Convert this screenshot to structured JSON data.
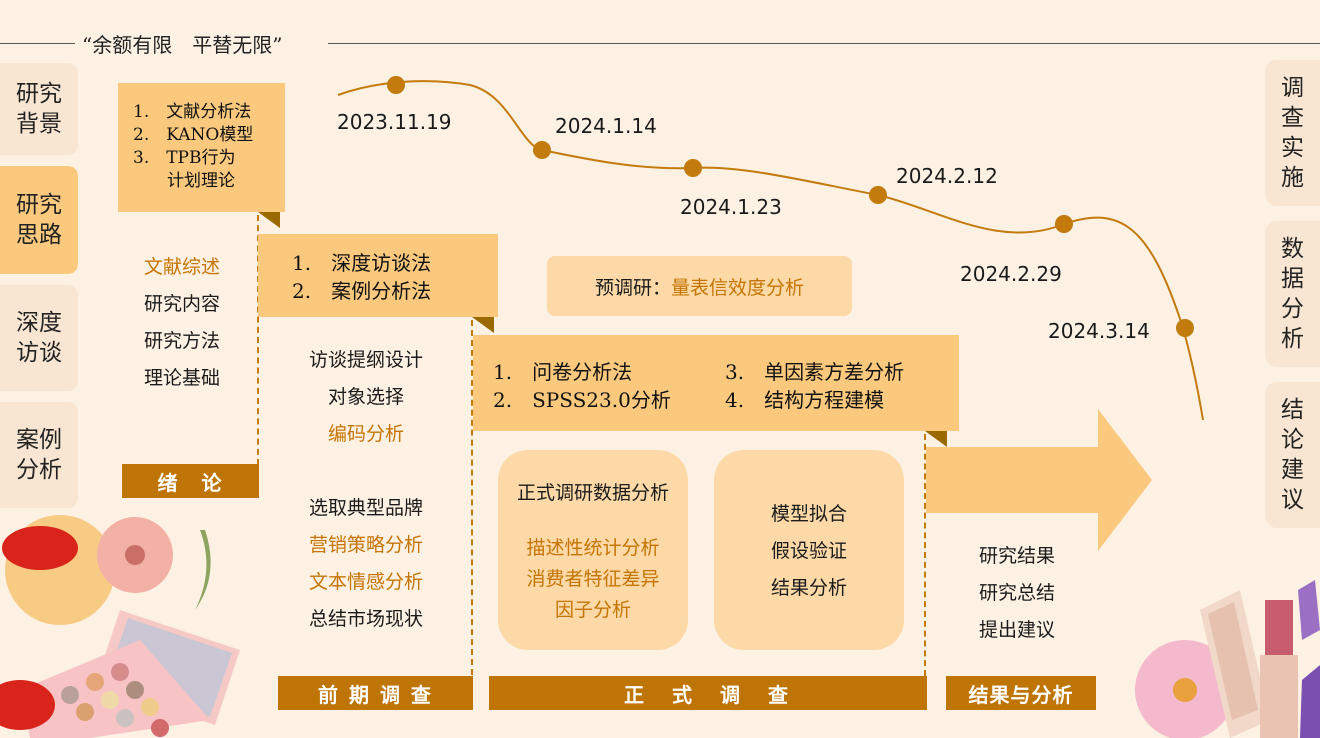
{
  "slogan": "“余额有限　平替无限”",
  "left_tabs": [
    "研究背景",
    "研究思路",
    "深度访谈",
    "案例分析"
  ],
  "right_tabs": [
    "调查实施",
    "数据分析",
    "结论建议"
  ],
  "timeline": {
    "dates": [
      "2023.11.19",
      "2024.1.14",
      "2024.1.23",
      "2024.2.12",
      "2024.2.29",
      "2024.3.14"
    ],
    "line_color": "#c27b0c"
  },
  "stage1": {
    "methods": [
      "1.　文献分析法",
      "2.　KANO模型",
      "3.　TPB行为",
      "　　计划理论"
    ],
    "items": [
      "文献综述",
      "研究内容",
      "研究方法",
      "理论基础"
    ],
    "bar": "绪　论"
  },
  "stage2": {
    "methods": [
      "1.　深度访谈法",
      "2.　案例分析法"
    ],
    "items_top": [
      "访谈提纲设计",
      "对象选择",
      "编码分析"
    ],
    "items_bottom": [
      "选取典型品牌",
      "营销策略分析",
      "文本情感分析",
      "总结市场现状"
    ],
    "bar": "前 期 调 查"
  },
  "pretest": {
    "label": "预调研：",
    "highlight": "量表信效度分析"
  },
  "stage3": {
    "methods_left": [
      "1.　问卷分析法",
      "2.　SPSS23.0分析"
    ],
    "methods_right": [
      "3.　单因素方差分析",
      "4.　结构方程建模"
    ],
    "box1_title": "正式调研数据分析",
    "box1_items": [
      "描述性统计分析",
      "消费者特征差异",
      "因子分析"
    ],
    "box2_items": [
      "模型拟合",
      "假设验证",
      "结果分析"
    ],
    "bar": "正　式　调　查"
  },
  "stage4": {
    "items": [
      "研究结果",
      "研究总结",
      "提出建议"
    ],
    "bar": "结果与分析"
  },
  "colors": {
    "background": "#fdf1e3",
    "orange_box": "#fbc97e",
    "light_box": "#fcd9a7",
    "bar": "#bf7406",
    "highlight_text": "#c57504"
  }
}
